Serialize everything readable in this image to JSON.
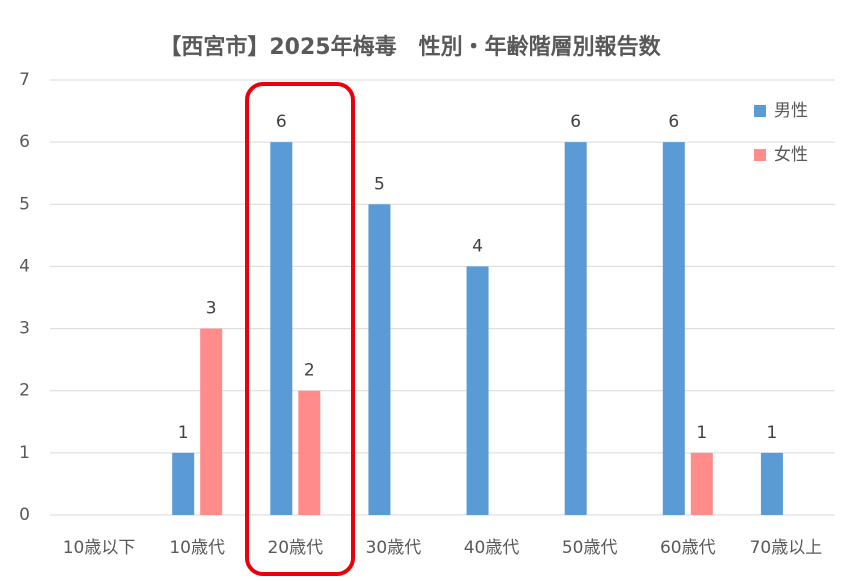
{
  "chart_data": {
    "type": "bar",
    "title": "【西宮市】2025年梅毒　性別・年齢階層別報告数",
    "categories": [
      "10歳以下",
      "10歳代",
      "20歳代",
      "30歳代",
      "40歳代",
      "50歳代",
      "60歳代",
      "70歳以上"
    ],
    "series": [
      {
        "name": "男性",
        "color": "#5b9bd5",
        "values": [
          0,
          1,
          6,
          5,
          4,
          6,
          6,
          1
        ]
      },
      {
        "name": "女性",
        "color": "#ff8b8b",
        "values": [
          0,
          3,
          2,
          0,
          0,
          0,
          1,
          0
        ]
      }
    ],
    "ylim": [
      0,
      7
    ],
    "yticks": [
      0,
      1,
      2,
      3,
      4,
      5,
      6,
      7
    ],
    "grid": true,
    "legend": "top-right"
  }
}
